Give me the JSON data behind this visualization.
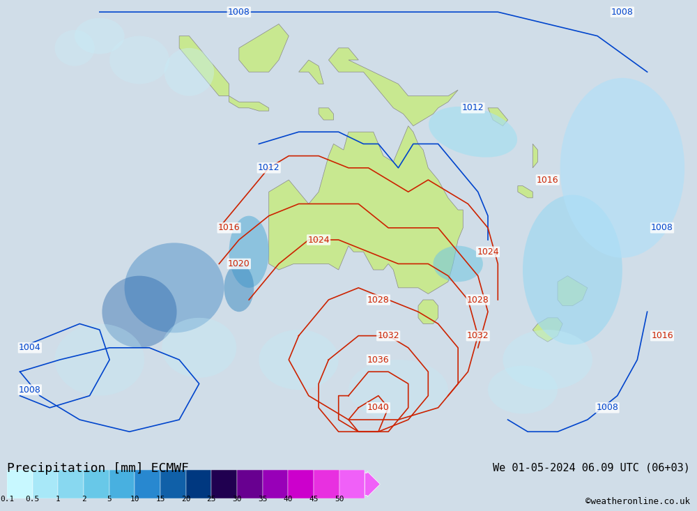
{
  "title_left": "Precipitation [mm] ECMWF",
  "title_right": "We 01-05-2024 06.09 UTC (06+03)",
  "credit": "©weatheronline.co.uk",
  "colorbar_levels": [
    0.1,
    0.5,
    1,
    2,
    5,
    10,
    15,
    20,
    25,
    30,
    35,
    40,
    45,
    50
  ],
  "colorbar_colors": [
    "#c8f8ff",
    "#a8e8f8",
    "#88d8f0",
    "#68c8e8",
    "#48b0e0",
    "#2888d0",
    "#1060a8",
    "#003880",
    "#200050",
    "#680090",
    "#9800b8",
    "#cc00cc",
    "#e830e0",
    "#f060f8"
  ],
  "background_color": "#d0dde8",
  "land_color": "#c8e890",
  "ocean_color": "#d8eef8",
  "isobar_blue_color": "#0044cc",
  "isobar_red_color": "#cc2200",
  "font_size_title": 13,
  "font_size_labels": 11,
  "font_size_credit": 9
}
